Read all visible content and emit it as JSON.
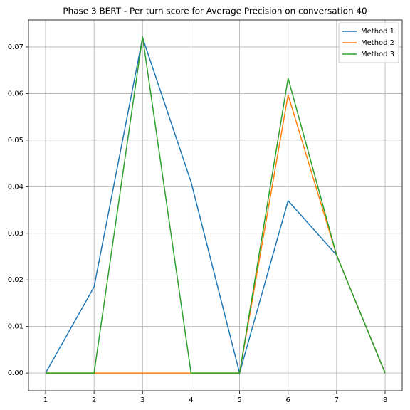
{
  "chart_data": {
    "type": "line",
    "title": "Phase 3 BERT - Per turn score for Average Precision on conversation 40",
    "x": [
      1,
      2,
      3,
      4,
      5,
      6,
      7,
      8
    ],
    "series": [
      {
        "name": "Method 1",
        "color": "#1f77b4",
        "values": [
          0,
          0.0185,
          0.072,
          0.041,
          0,
          0.037,
          0.0253,
          0
        ]
      },
      {
        "name": "Method 2",
        "color": "#ff7f0e",
        "values": [
          0,
          0,
          0,
          0,
          0,
          0.0597,
          0.0253,
          0
        ]
      },
      {
        "name": "Method 3",
        "color": "#2ca02c",
        "values": [
          0,
          0,
          0.0722,
          0,
          0,
          0.0633,
          0.0253,
          0
        ]
      }
    ],
    "xlim": [
      0.648,
      8.352
    ],
    "xticks": [
      1,
      2,
      3,
      4,
      5,
      6,
      7,
      8
    ],
    "ylim": [
      -0.0038,
      0.0758
    ],
    "yticks": [
      {
        "value": 0,
        "label": "0.00"
      },
      0.01,
      0.02,
      0.03,
      0.04,
      0.05,
      0.06,
      0.07
    ],
    "grid": true,
    "legend": "upper right"
  }
}
